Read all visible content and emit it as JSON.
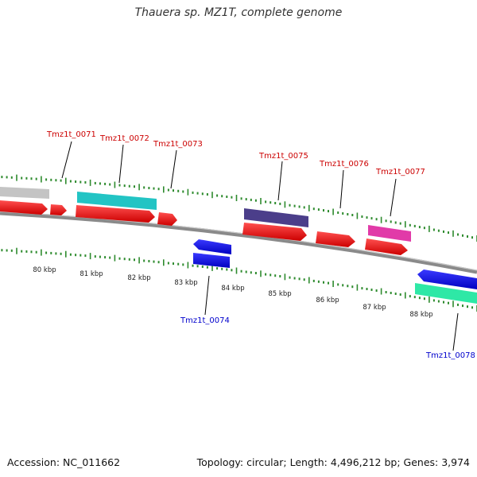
{
  "title": "Thauera sp. MZ1T, complete genome",
  "footer": {
    "accession": "Accession: NC_011662",
    "summary": "Topology: circular; Length: 4,496,212 bp; Genes: 3,974"
  },
  "colors": {
    "backbone": "#808080",
    "tick": "#2e8b2e",
    "forward_label": "#cc0000",
    "reverse_label": "#0000cc"
  },
  "ticks": [
    {
      "label": "80 kbp"
    },
    {
      "label": "81 kbp"
    },
    {
      "label": "82 kbp"
    },
    {
      "label": "83 kbp"
    },
    {
      "label": "84 kbp"
    },
    {
      "label": "85 kbp"
    },
    {
      "label": "86 kbp"
    },
    {
      "label": "87 kbp"
    },
    {
      "label": "88 kbp"
    }
  ],
  "gene_labels": [
    {
      "name": "Tmz1t_0071",
      "strand": "forward"
    },
    {
      "name": "Tmz1t_0072",
      "strand": "forward"
    },
    {
      "name": "Tmz1t_0073",
      "strand": "forward"
    },
    {
      "name": "Tmz1t_0075",
      "strand": "forward"
    },
    {
      "name": "Tmz1t_0076",
      "strand": "forward"
    },
    {
      "name": "Tmz1t_0077",
      "strand": "forward"
    },
    {
      "name": "Tmz1t_0074",
      "strand": "reverse"
    },
    {
      "name": "Tmz1t_0078",
      "strand": "reverse"
    }
  ],
  "features": [
    {
      "track": "forward",
      "color": "#c0c0c0"
    },
    {
      "track": "forward",
      "color": "#20c8c8"
    },
    {
      "track": "forward",
      "color": "#4a3f8c"
    },
    {
      "track": "forward",
      "color": "#e83aa8"
    },
    {
      "track": "forward-cds",
      "color": "#ee1111"
    },
    {
      "track": "reverse",
      "color": "#1010ee"
    },
    {
      "track": "reverse",
      "color": "#30e8a8"
    }
  ]
}
